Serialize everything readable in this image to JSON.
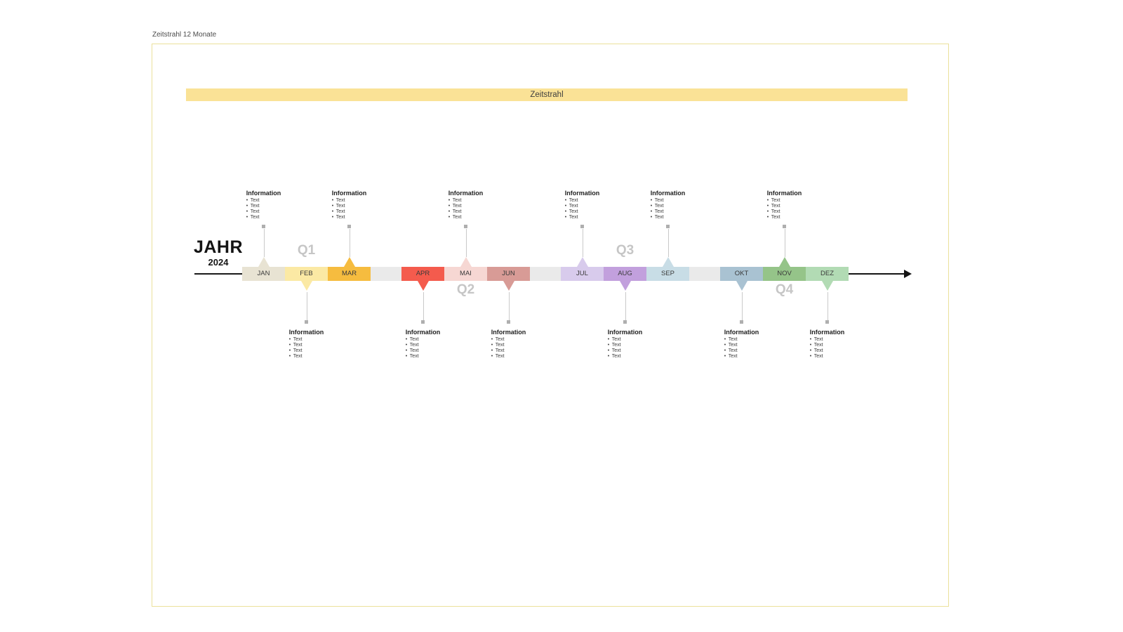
{
  "doc": {
    "label": "Zeitstrahl 12 Monate"
  },
  "header": {
    "title": "Zeitstrahl",
    "bar_color": "#fae296"
  },
  "year": {
    "label": "JAHR",
    "value": "2024"
  },
  "timeline": {
    "track_color": "#eaeaea",
    "connector_color": "#c9c9c9",
    "marker_color": "#afafaf",
    "arrow_color": "#141414",
    "months": [
      {
        "label": "JAN",
        "color": "#e8e3d3",
        "callout_side": "up",
        "callout": {
          "heading": "Information",
          "bullets": [
            "Text",
            "Text",
            "Text",
            "Text"
          ]
        }
      },
      {
        "label": "FEB",
        "color": "#fbe9a4",
        "callout_side": "down",
        "callout": {
          "heading": "Information",
          "bullets": [
            "Text",
            "Text",
            "Text",
            "Text"
          ]
        }
      },
      {
        "label": "MAR",
        "color": "#f6bc3f",
        "callout_side": "up",
        "callout": {
          "heading": "Information",
          "bullets": [
            "Text",
            "Text",
            "Text",
            "Text"
          ]
        }
      },
      {
        "label": "APR",
        "color": "#f45b4d",
        "callout_side": "down",
        "callout": {
          "heading": "Information",
          "bullets": [
            "Text",
            "Text",
            "Text",
            "Text"
          ]
        }
      },
      {
        "label": "MAI",
        "color": "#f6d7d3",
        "callout_side": "up",
        "callout": {
          "heading": "Information",
          "bullets": [
            "Text",
            "Text",
            "Text",
            "Text"
          ]
        }
      },
      {
        "label": "JUN",
        "color": "#d89b96",
        "callout_side": "down",
        "callout": {
          "heading": "Information",
          "bullets": [
            "Text",
            "Text",
            "Text",
            "Text"
          ]
        }
      },
      {
        "label": "JUL",
        "color": "#d8cbec",
        "callout_side": "up",
        "callout": {
          "heading": "Information",
          "bullets": [
            "Text",
            "Text",
            "Text",
            "Text"
          ]
        }
      },
      {
        "label": "AUG",
        "color": "#c2a0dd",
        "callout_side": "down",
        "callout": {
          "heading": "Information",
          "bullets": [
            "Text",
            "Text",
            "Text",
            "Text"
          ]
        }
      },
      {
        "label": "SEP",
        "color": "#c8dde6",
        "callout_side": "up",
        "callout": {
          "heading": "Information",
          "bullets": [
            "Text",
            "Text",
            "Text",
            "Text"
          ]
        }
      },
      {
        "label": "OKT",
        "color": "#a9c2d2",
        "callout_side": "down",
        "callout": {
          "heading": "Information",
          "bullets": [
            "Text",
            "Text",
            "Text",
            "Text"
          ]
        }
      },
      {
        "label": "NOV",
        "color": "#95c489",
        "callout_side": "up",
        "callout": {
          "heading": "Information",
          "bullets": [
            "Text",
            "Text",
            "Text",
            "Text"
          ]
        }
      },
      {
        "label": "DEZ",
        "color": "#b2dbb4",
        "callout_side": "down",
        "callout": {
          "heading": "Information",
          "bullets": [
            "Text",
            "Text",
            "Text",
            "Text"
          ]
        }
      }
    ],
    "quarters": [
      {
        "label": "Q1",
        "month_index": 1,
        "side": "up"
      },
      {
        "label": "Q2",
        "month_index": 4,
        "side": "down"
      },
      {
        "label": "Q3",
        "month_index": 7,
        "side": "up"
      },
      {
        "label": "Q4",
        "month_index": 10,
        "side": "down"
      }
    ]
  }
}
